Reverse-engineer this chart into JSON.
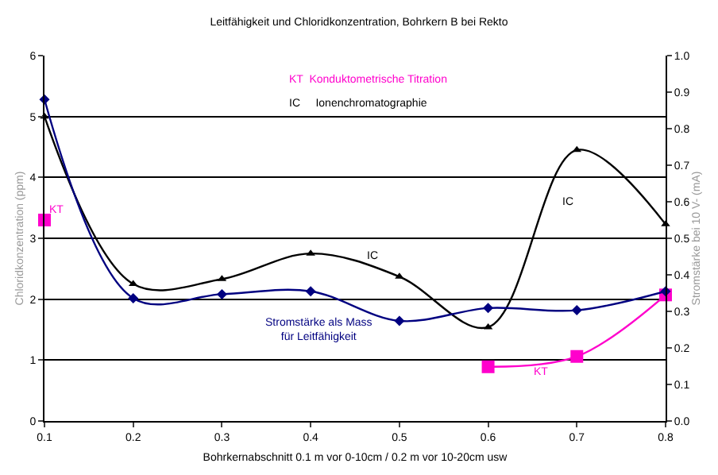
{
  "chart_data": {
    "type": "line",
    "title": "Leitfähigkeit und Chloridkonzentration, Bohrkern B bei Rekto",
    "xlabel": "Bohrkernabschnitt 0.1 m vor 0-10cm / 0.2 m vor 10-20cm usw",
    "ylabel": "Chloridkonzentration (ppm)",
    "y2label": "Stromstärke bei 10 V- (mA)",
    "x": [
      0.1,
      0.2,
      0.3,
      0.4,
      0.5,
      0.6,
      0.7,
      0.8
    ],
    "series": [
      {
        "name": "IC",
        "color": "#000000",
        "marker": "triangle",
        "values": [
          5.0,
          2.25,
          2.33,
          2.75,
          2.37,
          1.54,
          4.45,
          3.23
        ]
      },
      {
        "name": "Stromstärke als Mass für Leitfähigkeit",
        "color": "#000080",
        "marker": "diamond",
        "axis": "y2",
        "values": [
          0.88,
          0.336,
          0.347,
          0.355,
          0.274,
          0.309,
          0.303,
          0.355
        ]
      },
      {
        "name": "KT",
        "color": "#ff00cc",
        "marker": "square",
        "values": [
          3.3,
          null,
          null,
          null,
          null,
          0.89,
          1.06,
          2.07
        ]
      }
    ],
    "xlim": [
      0.1,
      0.8
    ],
    "xticks": [
      0.1,
      0.2,
      0.3,
      0.4,
      0.5,
      0.6,
      0.7,
      0.8
    ],
    "ylim": [
      0,
      6
    ],
    "yticks": [
      0,
      1,
      2,
      3,
      4,
      5,
      6
    ],
    "y2lim": [
      0,
      1
    ],
    "y2ticks": [
      {
        "value": 0,
        "label": "0.0"
      },
      0.1,
      0.2,
      0.3,
      0.4,
      0.5,
      0.6,
      0.7,
      0.8,
      0.9,
      {
        "value": 1,
        "label": "1.0"
      }
    ],
    "grid": "y",
    "annotations": [
      "KT  Konduktometrische Titration",
      "IC     Ionenchromatographie"
    ]
  }
}
